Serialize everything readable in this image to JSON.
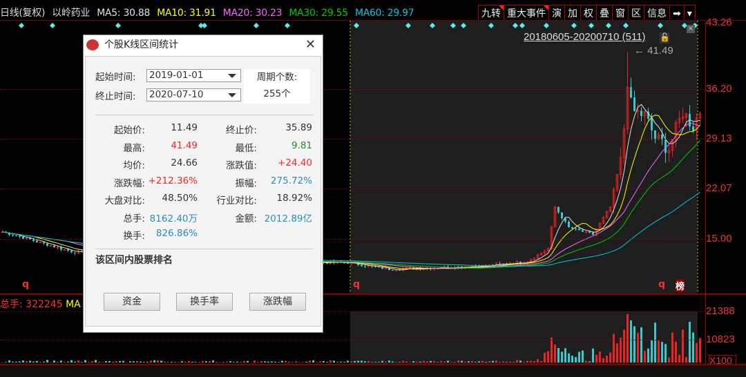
{
  "header": {
    "period": "日线(复权)",
    "stock": "以岭药业",
    "ma": [
      {
        "label": "MA5: 30.88",
        "color": "#e0e0e0"
      },
      {
        "label": "MA10: 31.91",
        "color": "#ffff00"
      },
      {
        "label": "MA20: 30.23",
        "color": "#ff66ff"
      },
      {
        "label": "MA30: 29.55",
        "color": "#00cc00"
      },
      {
        "label": "MA60: 29.97",
        "color": "#00c8e0"
      }
    ]
  },
  "toolbar": [
    "九转",
    "重大事件",
    "演",
    "加",
    "权",
    "叠",
    "窗",
    "区",
    "信息",
    "➡",
    "▾"
  ],
  "price_axis": [
    "43.26",
    "36.20",
    "29.13",
    "22.07",
    "15.00"
  ],
  "volume_axis": [
    "21388",
    "10823",
    "X100"
  ],
  "selection": {
    "range": "20180605-20200710 (511)",
    "high_marker": "41.49"
  },
  "volume_header": {
    "label": "总手: 322245",
    "ma": "MA"
  },
  "markers": {
    "q": "q",
    "bang": "榜"
  },
  "dialog": {
    "title": "个股K线区间统计",
    "start_label": "起始时间:",
    "start_value": "2019-01-01",
    "end_label": "终止时间:",
    "end_value": "2020-07-10",
    "period_count_label": "周期个数:",
    "period_count_value": "255个",
    "stats": [
      {
        "label": "起始价:",
        "value": "11.49",
        "color": "plain"
      },
      {
        "label": "终止价:",
        "value": "35.89",
        "color": "plain"
      },
      {
        "label": "最高:",
        "value": "41.49",
        "color": "red"
      },
      {
        "label": "最低:",
        "value": "9.81",
        "color": "green"
      },
      {
        "label": "均价:",
        "value": "24.66",
        "color": "plain"
      },
      {
        "label": "涨跌值:",
        "value": "+24.40",
        "color": "red"
      },
      {
        "label": "涨跌幅:",
        "value": "+212.36%",
        "color": "red"
      },
      {
        "label": "振幅:",
        "value": "275.72%",
        "color": "blue"
      },
      {
        "label": "大盘对比:",
        "value": "48.50%",
        "color": "plain"
      },
      {
        "label": "行业对比:",
        "value": "18.92%",
        "color": "plain"
      },
      {
        "label": "总手:",
        "value": "8162.40万",
        "color": "blue"
      },
      {
        "label": "金额:",
        "value": "2012.89亿",
        "color": "blue"
      },
      {
        "label": "换手:",
        "value": "826.86%",
        "color": "blue"
      }
    ],
    "ranking_title": "该区间内股票排名",
    "buttons": [
      "资金",
      "换手率",
      "涨跌幅"
    ]
  },
  "chart_data": {
    "type": "candlestick",
    "price_ylim": [
      9.81,
      43.26
    ],
    "close_anchors": [
      [
        0,
        16
      ],
      [
        20,
        13.2
      ],
      [
        40,
        12.2
      ],
      [
        60,
        12
      ],
      [
        100,
        11.6
      ],
      [
        112,
        10.7
      ],
      [
        140,
        11.2
      ],
      [
        152,
        11.8
      ],
      [
        158,
        13.6
      ],
      [
        160,
        19.5
      ],
      [
        164,
        16.6
      ],
      [
        171,
        15.6
      ],
      [
        176,
        19.5
      ],
      [
        179,
        26.4
      ],
      [
        181,
        35
      ],
      [
        183,
        33
      ],
      [
        186,
        32.5
      ],
      [
        189,
        29.3
      ],
      [
        193,
        27.8
      ],
      [
        197,
        33
      ],
      [
        200,
        31
      ],
      [
        202,
        33.2
      ]
    ],
    "selection_start_bar": 101,
    "high": 41.49
  }
}
